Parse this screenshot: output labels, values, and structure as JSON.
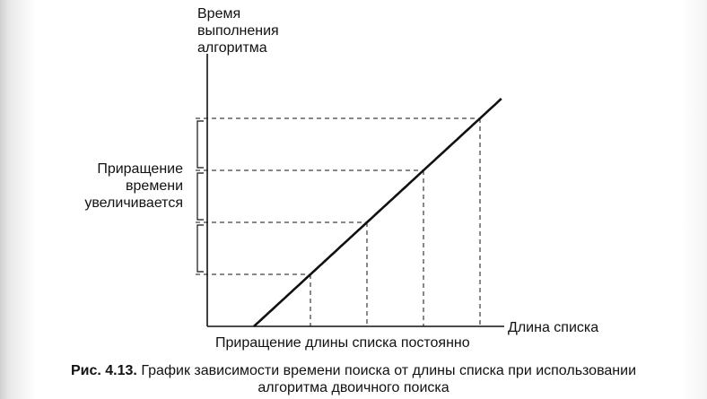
{
  "chart_data": {
    "type": "line",
    "title": "",
    "ylabel_lines": [
      "Время",
      "выполнения",
      "алгоритма"
    ],
    "xlabel": "Длина списка",
    "x_annotation": "Приращение длины списка постоянно",
    "y_annotation_lines": [
      "Приращение",
      "времени",
      "увеличивается"
    ],
    "grid": false,
    "series": [
      {
        "style": "solid curve, logarithmic growth",
        "x": [
          1,
          2,
          4,
          8,
          16
        ],
        "y": [
          0,
          1,
          2,
          3,
          4
        ]
      }
    ],
    "guide_points": [
      {
        "x": 2,
        "y": 1
      },
      {
        "x": 4,
        "y": 2
      },
      {
        "x": 8,
        "y": 3
      },
      {
        "x": 16,
        "y": 4
      }
    ]
  },
  "caption": {
    "figure": "Рис. 4.13.",
    "text_line1": "График зависимости времени поиска от длины списка при использовании",
    "text_line2": "алгоритма двоичного поиска"
  }
}
